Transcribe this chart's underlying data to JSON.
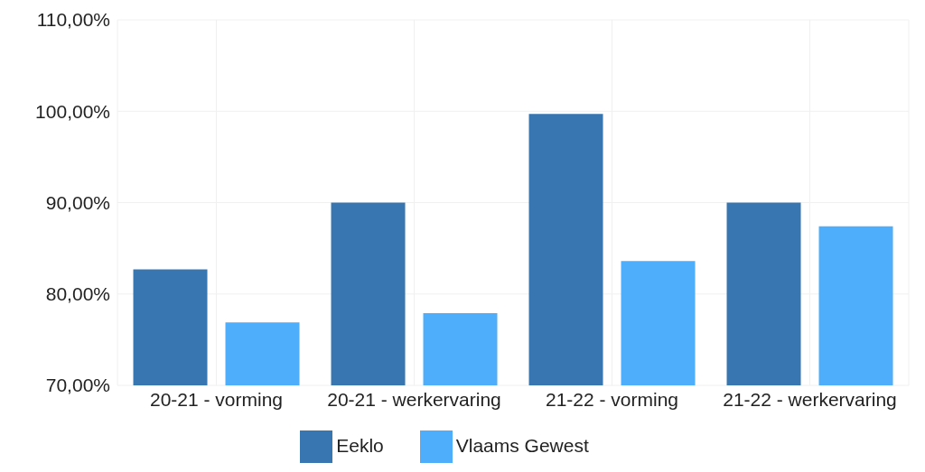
{
  "chart_data": {
    "type": "bar",
    "categories": [
      "20-21 - vorming",
      "20-21 - werkervaring",
      "21-22 - vorming",
      "21-22 - werkervaring"
    ],
    "series": [
      {
        "name": "Eeklo",
        "color": "#3776b0",
        "values": [
          82.7,
          90,
          99.7,
          90
        ]
      },
      {
        "name": "Vlaams Gewest",
        "color": "#4eaefc",
        "values": [
          76.9,
          77.9,
          83.6,
          87.4
        ]
      }
    ],
    "ylim": [
      70,
      110
    ],
    "yticks": [
      {
        "value": 70,
        "label": "70,00%"
      },
      {
        "value": 80,
        "label": "80,00%"
      },
      {
        "value": 90,
        "label": "90,00%"
      },
      {
        "value": 100,
        "label": "100,00%"
      },
      {
        "value": 110,
        "label": "110,00%"
      }
    ],
    "grid": true,
    "legend": "bottom"
  }
}
